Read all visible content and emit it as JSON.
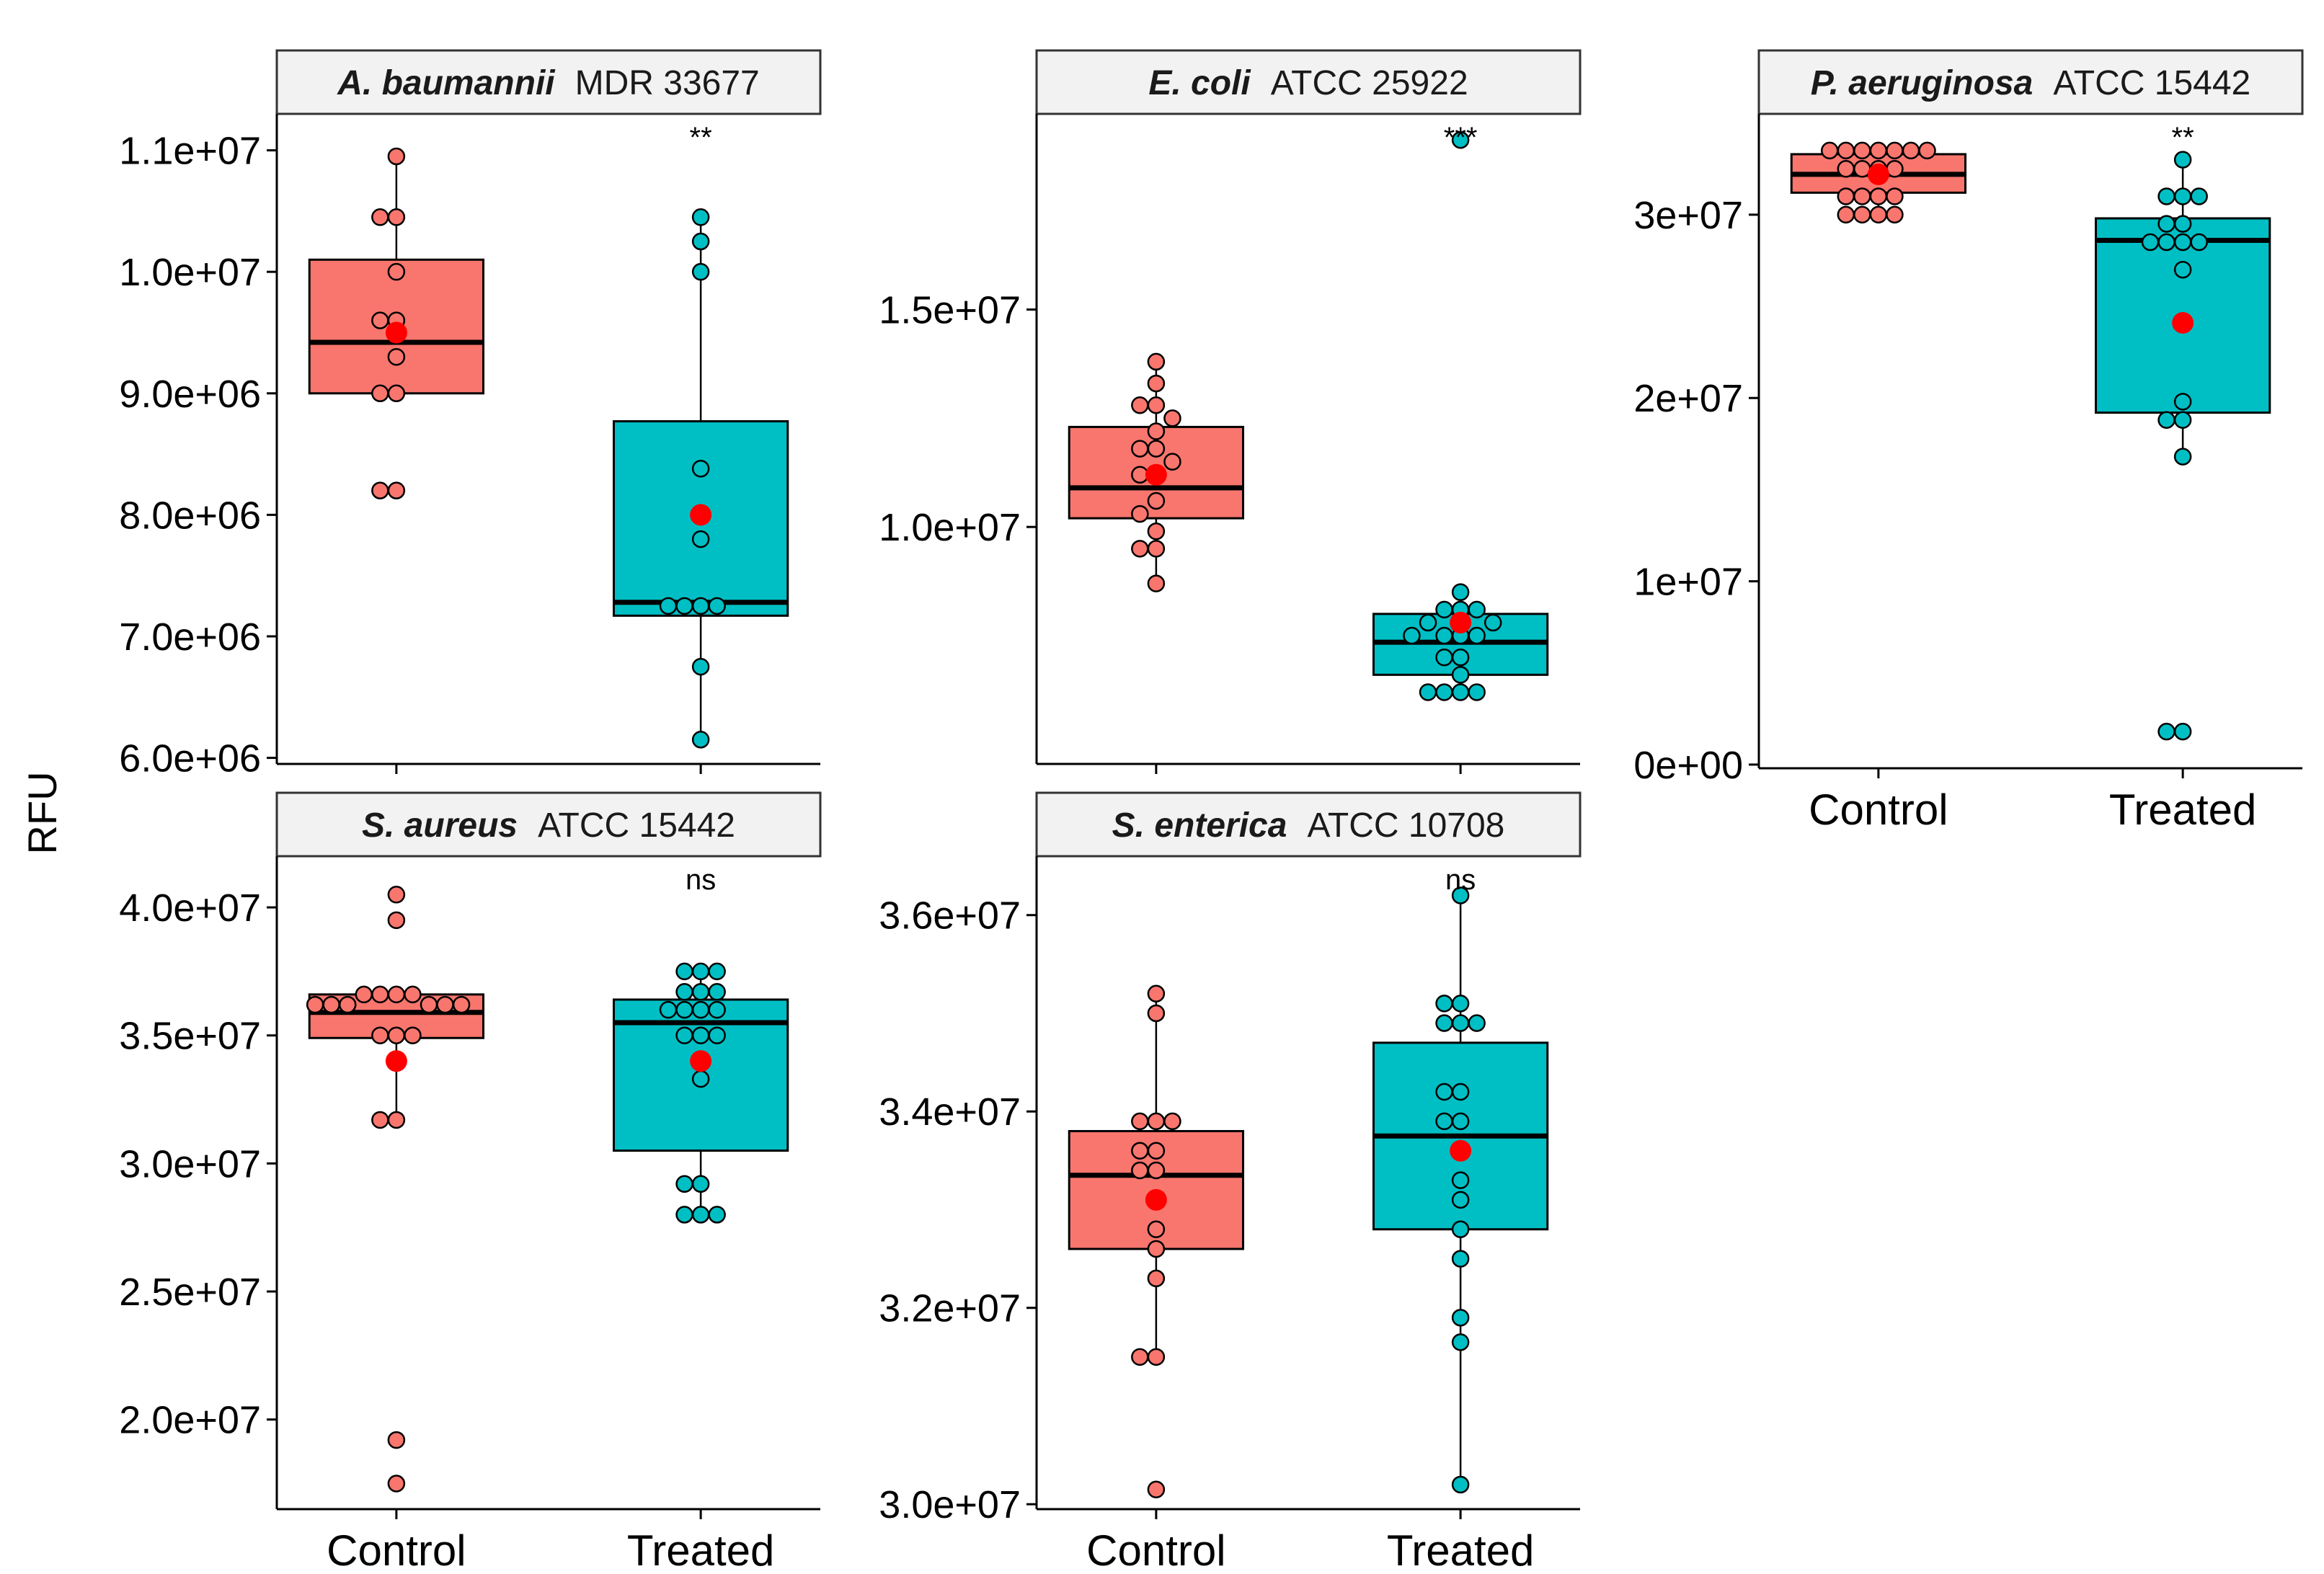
{
  "figure": {
    "ylabel": "RFU",
    "colors": {
      "control": "#F8766D",
      "treated": "#00BFC4",
      "mean": "#FF0000",
      "strip": "#F2F2F2",
      "median": "#000000"
    }
  },
  "chart_data": [
    {
      "type": "box",
      "species": "A. baumannii",
      "strain": "MDR 33677",
      "significance": "**",
      "ylim": [
        5950000.0,
        11300000.0
      ],
      "yticks": [
        6000000.0,
        7000000.0,
        8000000.0,
        9000000.0,
        10000000.0,
        11000000.0
      ],
      "ytick_labels": [
        "6.0e+06",
        "7.0e+06",
        "8.0e+06",
        "9.0e+06",
        "1.0e+07",
        "1.1e+07"
      ],
      "categories": [
        "Control",
        "Treated"
      ],
      "show_xlabels": false,
      "groups": [
        {
          "name": "Control",
          "box": {
            "lower": 9000000.0,
            "q1": 9000000.0,
            "median": 9420000.0,
            "q3": 10100000.0,
            "upper": 10950000.0
          },
          "mean": 9500000.0,
          "points": [
            10950000.0,
            10450000.0,
            10450000.0,
            10000000.0,
            9600000.0,
            9600000.0,
            9300000.0,
            9000000.0,
            9000000.0,
            8200000.0,
            8200000.0
          ]
        },
        {
          "name": "Treated",
          "box": {
            "lower": 6150000.0,
            "q1": 7170000.0,
            "median": 7280000.0,
            "q3": 8770000.0,
            "upper": 10450000.0
          },
          "mean": 8000000.0,
          "points": [
            10450000.0,
            10250000.0,
            10000000.0,
            8380000.0,
            7800000.0,
            7250000.0,
            7250000.0,
            7250000.0,
            7250000.0,
            6750000.0,
            6150000.0
          ]
        }
      ]
    },
    {
      "type": "box",
      "species": "E. coli",
      "strain": "ATCC 25922",
      "significance": "***",
      "ylim": [
        4550000.0,
        19500000.0
      ],
      "yticks": [
        10000000.0,
        15000000.0
      ],
      "ytick_labels": [
        "1.0e+07",
        "1.5e+07"
      ],
      "categories": [
        "Control",
        "Treated"
      ],
      "show_xlabels": false,
      "groups": [
        {
          "name": "Control",
          "box": {
            "lower": 8700000.0,
            "q1": 10200000.0,
            "median": 10900000.0,
            "q3": 12300000.0,
            "upper": 13800000.0
          },
          "mean": 11200000.0,
          "points": [
            13800000.0,
            13300000.0,
            12800000.0,
            12800000.0,
            12500000.0,
            12200000.0,
            11800000.0,
            11800000.0,
            11500000.0,
            11200000.0,
            11200000.0,
            10600000.0,
            10300000.0,
            9900000.0,
            9500000.0,
            9500000.0,
            8700000.0
          ]
        },
        {
          "name": "Treated",
          "box": {
            "lower": 6200000.0,
            "q1": 6600000.0,
            "median": 7350000.0,
            "q3": 8000000.0,
            "upper": 8500000.0
          },
          "mean": 7800000.0,
          "points": [
            18900000.0,
            8500000.0,
            8100000.0,
            8100000.0,
            8100000.0,
            7800000.0,
            7800000.0,
            7500000.0,
            7500000.0,
            7500000.0,
            7500000.0,
            7000000.0,
            7000000.0,
            6600000.0,
            6200000.0,
            6200000.0,
            6200000.0,
            6200000.0
          ]
        }
      ]
    },
    {
      "type": "box",
      "species": "P. aeruginosa",
      "strain": "ATCC 15442",
      "significance": "**",
      "ylim": [
        -200000.0,
        35500000.0
      ],
      "yticks": [
        0,
        10000000.0,
        20000000.0,
        30000000.0
      ],
      "ytick_labels": [
        "0e+00",
        "1e+07",
        "2e+07",
        "3e+07"
      ],
      "categories": [
        "Control",
        "Treated"
      ],
      "show_xlabels": true,
      "groups": [
        {
          "name": "Control",
          "box": {
            "lower": 30000000.0,
            "q1": 31200000.0,
            "median": 32200000.0,
            "q3": 33300000.0,
            "upper": 33500000.0
          },
          "mean": 32200000.0,
          "points": [
            33500000.0,
            33500000.0,
            33500000.0,
            33500000.0,
            33500000.0,
            33500000.0,
            33500000.0,
            32500000.0,
            32500000.0,
            32500000.0,
            32500000.0,
            31000000.0,
            31000000.0,
            31000000.0,
            31000000.0,
            30000000.0,
            30000000.0,
            30000000.0,
            30000000.0
          ]
        },
        {
          "name": "Treated",
          "box": {
            "lower": 16800000.0,
            "q1": 19200000.0,
            "median": 28600000.0,
            "q3": 29800000.0,
            "upper": 33000000.0
          },
          "mean": 24100000.0,
          "points": [
            33000000.0,
            31000000.0,
            31000000.0,
            31000000.0,
            29500000.0,
            29500000.0,
            28500000.0,
            28500000.0,
            28500000.0,
            28500000.0,
            27000000.0,
            19800000.0,
            18800000.0,
            18800000.0,
            16800000.0,
            1800000.0,
            1800000.0
          ]
        }
      ]
    },
    {
      "type": "box",
      "species": "S. aureus",
      "strain": "ATCC 15442",
      "significance": "ns",
      "ylim": [
        16500000.0,
        42000000.0
      ],
      "yticks": [
        20000000.0,
        25000000.0,
        30000000.0,
        35000000.0,
        40000000.0
      ],
      "ytick_labels": [
        "2.0e+07",
        "2.5e+07",
        "3.0e+07",
        "3.5e+07",
        "4.0e+07"
      ],
      "categories": [
        "Control",
        "Treated"
      ],
      "show_xlabels": true,
      "groups": [
        {
          "name": "Control",
          "box": {
            "lower": 31700000.0,
            "q1": 34900000.0,
            "median": 35900000.0,
            "q3": 36600000.0,
            "upper": 36600000.0
          },
          "mean": 34000000.0,
          "points": [
            40500000.0,
            39500000.0,
            36600000.0,
            36600000.0,
            36600000.0,
            36600000.0,
            36200000.0,
            36200000.0,
            36200000.0,
            36200000.0,
            36200000.0,
            36200000.0,
            35000000.0,
            35000000.0,
            35000000.0,
            31700000.0,
            31700000.0,
            19200000.0,
            17500000.0
          ]
        },
        {
          "name": "Treated",
          "box": {
            "lower": 28000000.0,
            "q1": 30500000.0,
            "median": 35500000.0,
            "q3": 36400000.0,
            "upper": 37500000.0
          },
          "mean": 34000000.0,
          "points": [
            37500000.0,
            37500000.0,
            37500000.0,
            36700000.0,
            36700000.0,
            36700000.0,
            36000000.0,
            36000000.0,
            36000000.0,
            36000000.0,
            35000000.0,
            35000000.0,
            35000000.0,
            33300000.0,
            29200000.0,
            29200000.0,
            28000000.0,
            28000000.0,
            28000000.0
          ]
        }
      ]
    },
    {
      "type": "box",
      "species": "S. enterica",
      "strain": "ATCC 10708",
      "significance": "ns",
      "ylim": [
        29950000.0,
        36600000.0
      ],
      "yticks": [
        30000000.0,
        32000000.0,
        34000000.0,
        36000000.0
      ],
      "ytick_labels": [
        "3.0e+07",
        "3.2e+07",
        "3.4e+07",
        "3.6e+07"
      ],
      "categories": [
        "Control",
        "Treated"
      ],
      "show_xlabels": true,
      "groups": [
        {
          "name": "Control",
          "box": {
            "lower": 31500000.0,
            "q1": 32600000.0,
            "median": 33350000.0,
            "q3": 33800000.0,
            "upper": 35200000.0
          },
          "mean": 33100000.0,
          "points": [
            35200000.0,
            35000000.0,
            33900000.0,
            33900000.0,
            33900000.0,
            33600000.0,
            33600000.0,
            33400000.0,
            33400000.0,
            33100000.0,
            32800000.0,
            32600000.0,
            32300000.0,
            31500000.0,
            31500000.0,
            30150000.0
          ]
        },
        {
          "name": "Treated",
          "box": {
            "lower": 30200000.0,
            "q1": 32800000.0,
            "median": 33750000.0,
            "q3": 34700000.0,
            "upper": 36200000.0
          },
          "mean": 33600000.0,
          "points": [
            36200000.0,
            35100000.0,
            35100000.0,
            34900000.0,
            34900000.0,
            34900000.0,
            34200000.0,
            34200000.0,
            33900000.0,
            33900000.0,
            33600000.0,
            33300000.0,
            33100000.0,
            32800000.0,
            32500000.0,
            31900000.0,
            31650000.0,
            30200000.0
          ]
        }
      ]
    }
  ]
}
